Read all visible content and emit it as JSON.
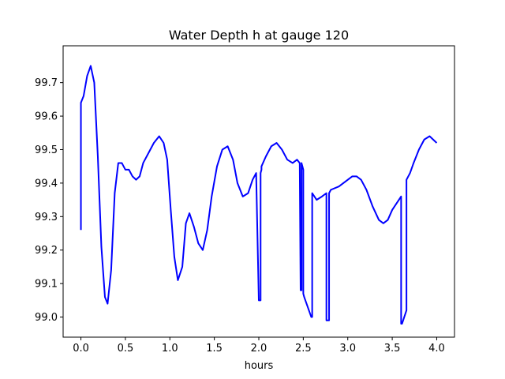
{
  "chart_data": {
    "type": "line",
    "title": "Water Depth h at gauge 120",
    "xlabel": "hours",
    "ylabel": "",
    "xlim": [
      -0.2,
      4.2
    ],
    "ylim": [
      98.94,
      99.81
    ],
    "xticks": [
      0.0,
      0.5,
      1.0,
      1.5,
      2.0,
      2.5,
      3.0,
      3.5,
      4.0
    ],
    "xtick_labels": [
      "0.0",
      "0.5",
      "1.0",
      "1.5",
      "2.0",
      "2.5",
      "3.0",
      "3.5",
      "4.0"
    ],
    "yticks": [
      99.0,
      99.1,
      99.2,
      99.3,
      99.4,
      99.5,
      99.6,
      99.7
    ],
    "ytick_labels": [
      "99.0",
      "99.1",
      "99.2",
      "99.3",
      "99.4",
      "99.5",
      "99.6",
      "99.7"
    ],
    "grid": false,
    "series": [
      {
        "color": "#0000ff",
        "x": [
          0.0,
          0.0,
          0.03,
          0.07,
          0.11,
          0.15,
          0.19,
          0.23,
          0.27,
          0.3,
          0.34,
          0.38,
          0.42,
          0.46,
          0.5,
          0.54,
          0.58,
          0.62,
          0.66,
          0.7,
          0.76,
          0.82,
          0.88,
          0.93,
          0.97,
          1.01,
          1.05,
          1.09,
          1.14,
          1.18,
          1.22,
          1.27,
          1.32,
          1.37,
          1.42,
          1.47,
          1.53,
          1.59,
          1.65,
          1.71,
          1.76,
          1.82,
          1.88,
          1.93,
          1.97,
          2.0,
          2.02,
          2.02,
          2.03,
          2.03,
          2.08,
          2.14,
          2.2,
          2.26,
          2.32,
          2.38,
          2.43,
          2.46,
          2.47,
          2.48,
          2.48,
          2.49,
          2.5,
          2.5,
          2.51,
          2.55,
          2.59,
          2.6,
          2.6,
          2.65,
          2.71,
          2.76,
          2.76,
          2.79,
          2.79,
          2.81,
          2.9,
          2.95,
          3.0,
          3.05,
          3.1,
          3.15,
          3.21,
          3.28,
          3.35,
          3.4,
          3.45,
          3.5,
          3.55,
          3.6,
          3.6,
          3.61,
          3.66,
          3.66,
          3.7,
          3.74,
          3.8,
          3.86,
          3.92,
          3.96,
          4.0
        ],
        "y": [
          99.26,
          99.64,
          99.66,
          99.72,
          99.75,
          99.7,
          99.48,
          99.21,
          99.06,
          99.04,
          99.14,
          99.37,
          99.46,
          99.46,
          99.44,
          99.44,
          99.42,
          99.41,
          99.42,
          99.46,
          99.49,
          99.52,
          99.54,
          99.52,
          99.47,
          99.32,
          99.18,
          99.11,
          99.15,
          99.28,
          99.31,
          99.27,
          99.22,
          99.2,
          99.26,
          99.36,
          99.45,
          99.5,
          99.51,
          99.47,
          99.4,
          99.36,
          99.37,
          99.41,
          99.43,
          99.05,
          99.05,
          99.43,
          99.44,
          99.45,
          99.48,
          99.51,
          99.52,
          99.5,
          99.47,
          99.46,
          99.47,
          99.46,
          99.08,
          99.08,
          99.46,
          99.45,
          99.44,
          99.07,
          99.06,
          99.03,
          99.0,
          99.0,
          99.37,
          99.35,
          99.36,
          99.37,
          98.99,
          98.99,
          99.37,
          99.38,
          99.39,
          99.4,
          99.41,
          99.42,
          99.42,
          99.41,
          99.38,
          99.33,
          99.29,
          99.28,
          99.29,
          99.32,
          99.34,
          99.36,
          98.98,
          98.98,
          99.02,
          99.41,
          99.43,
          99.46,
          99.5,
          99.53,
          99.54,
          99.53,
          99.52
        ]
      }
    ]
  },
  "colors": {
    "line": "#0000ff",
    "axes": "#000000",
    "background": "#ffffff"
  }
}
